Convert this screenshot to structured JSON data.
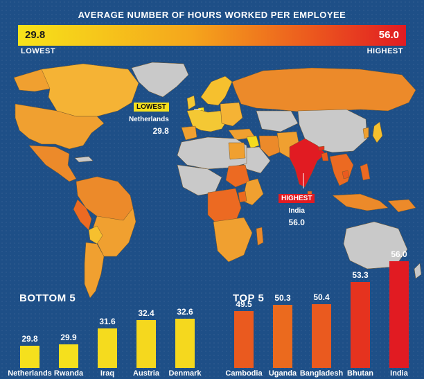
{
  "title": "AVERAGE NUMBER OF HOURS WORKED PER EMPLOYEE",
  "scale": {
    "low_value": "29.8",
    "high_value": "56.0",
    "low_label": "LOWEST",
    "high_label": "HIGHEST",
    "colors": [
      "#f6e31a",
      "#f5a51c",
      "#ec5a1e",
      "#e11b22"
    ]
  },
  "callouts": {
    "lowest": {
      "tag": "LOWEST",
      "country": "Netherlands",
      "value": "29.8"
    },
    "highest": {
      "tag": "HIGHEST",
      "country": "India",
      "value": "56.0"
    }
  },
  "bottom5": {
    "title": "BOTTOM 5",
    "items": [
      {
        "country": "Netherlands",
        "value": 29.8,
        "label": "29.8",
        "color": "#f5e01d"
      },
      {
        "country": "Rwanda",
        "value": 29.9,
        "label": "29.9",
        "color": "#f5e01d"
      },
      {
        "country": "Iraq",
        "value": 31.6,
        "label": "31.6",
        "color": "#f5db1e"
      },
      {
        "country": "Austria",
        "value": 32.4,
        "label": "32.4",
        "color": "#f5d81e"
      },
      {
        "country": "Denmark",
        "value": 32.6,
        "label": "32.6",
        "color": "#f5d81e"
      }
    ]
  },
  "top5": {
    "title": "TOP 5",
    "items": [
      {
        "country": "Cambodia",
        "value": 49.5,
        "label": "49.5",
        "color": "#ea5a1f"
      },
      {
        "country": "Uganda",
        "value": 50.3,
        "label": "50.3",
        "color": "#eb6a1e"
      },
      {
        "country": "Bangladesh",
        "value": 50.4,
        "label": "50.4",
        "color": "#ea5a1f"
      },
      {
        "country": "Bhutan",
        "value": 53.3,
        "label": "53.3",
        "color": "#e5331f"
      },
      {
        "country": "India",
        "value": 56.0,
        "label": "56.0",
        "color": "#e11b22"
      }
    ]
  },
  "colors": {
    "ocean": "#1e4f87",
    "no_data": "#c9c9c9",
    "mid": "#f0a030"
  }
}
